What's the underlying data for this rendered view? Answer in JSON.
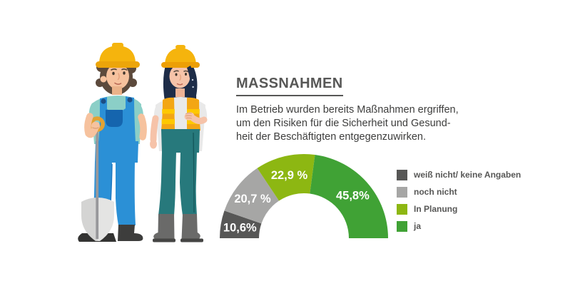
{
  "panel": {
    "paragraph": "Im Betrieb wurden bereits Maßnahmen ergriffen,\num den Risiken für die Sicherheit und Gesund-\nheit der Beschäftigten entgegenzuwirken."
  },
  "chart_data": {
    "type": "pie",
    "variant": "semicircle_donut",
    "title": "MASSNAHMEN",
    "subtitle": "Im Betrieb wurden bereits Maßnahmen ergriffen, um den Risiken für die Sicherheit und Gesundheit der Beschäftigten entgegenzuwirken.",
    "unit": "%",
    "start_angle_deg": 180,
    "end_angle_deg": 0,
    "legend_position": "right",
    "grid": false,
    "segments": [
      {
        "label": "weiß nicht/ keine Angaben",
        "value": 10.6,
        "display": "10,6%",
        "color": "#575756"
      },
      {
        "label": "noch nicht",
        "value": 20.7,
        "display": "20,7 %",
        "color": "#a6a6a5"
      },
      {
        "label": "In Planung",
        "value": 22.9,
        "display": "22,9 %",
        "color": "#8db712"
      },
      {
        "label": "ja",
        "value": 45.8,
        "display": "45,8%",
        "color": "#40a235"
      }
    ]
  },
  "illustration": {
    "description": "Two construction workers with yellow hard hats: man in blue overalls leaning on a shovel, woman in orange safety vest"
  }
}
